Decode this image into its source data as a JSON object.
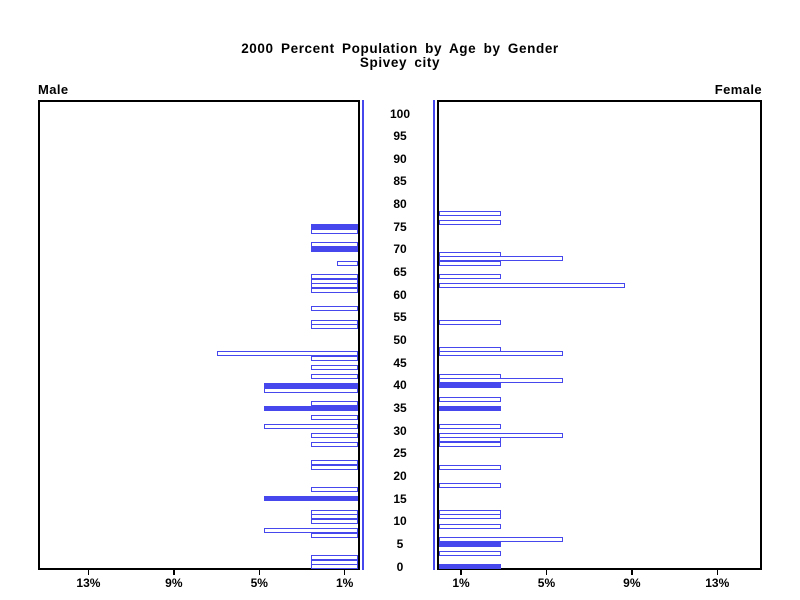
{
  "title": {
    "line1": "2000 Percent Population by Age by Gender",
    "line2": "Spivey city"
  },
  "panel_labels": {
    "left": "Male",
    "right": "Female"
  },
  "colors": {
    "bar_blue": "#4747ee",
    "frame_black": "#000000",
    "background": "#ffffff"
  },
  "chart_data": {
    "type": "bar",
    "subtype": "population-pyramid",
    "title": "2000 Percent Population by Age by Gender",
    "subtitle": "Spivey city",
    "legend": "none",
    "grid": false,
    "age_axis": {
      "min": 0,
      "max": 100,
      "step": 5,
      "tick_labels": [
        "0",
        "5",
        "10",
        "15",
        "20",
        "25",
        "30",
        "35",
        "40",
        "45",
        "50",
        "55",
        "60",
        "65",
        "70",
        "75",
        "80",
        "85",
        "90",
        "95",
        "100"
      ]
    },
    "pct_axis": {
      "tick_values": [
        1,
        5,
        9,
        13
      ],
      "tick_labels": [
        "1%",
        "5%",
        "9%",
        "13%"
      ],
      "max": 15.3,
      "unit": "percent of gender population"
    },
    "series": [
      {
        "name": "Male",
        "side": "left",
        "bars": [
          {
            "age": 75,
            "pct": 2.2,
            "filled": true
          },
          {
            "age": 74,
            "pct": 2.2,
            "filled": false
          },
          {
            "age": 71,
            "pct": 2.2,
            "filled": false
          },
          {
            "age": 70,
            "pct": 2.2,
            "filled": true
          },
          {
            "age": 67,
            "pct": 1.0,
            "filled": false
          },
          {
            "age": 64,
            "pct": 2.2,
            "filled": false
          },
          {
            "age": 63,
            "pct": 2.2,
            "filled": false
          },
          {
            "age": 62,
            "pct": 2.2,
            "filled": false
          },
          {
            "age": 61,
            "pct": 2.2,
            "filled": false
          },
          {
            "age": 57,
            "pct": 2.2,
            "filled": false
          },
          {
            "age": 54,
            "pct": 2.2,
            "filled": false
          },
          {
            "age": 53,
            "pct": 2.2,
            "filled": false
          },
          {
            "age": 47,
            "pct": 6.6,
            "filled": false
          },
          {
            "age": 46,
            "pct": 2.2,
            "filled": false
          },
          {
            "age": 44,
            "pct": 2.2,
            "filled": false
          },
          {
            "age": 42,
            "pct": 2.2,
            "filled": false
          },
          {
            "age": 40,
            "pct": 4.4,
            "filled": true
          },
          {
            "age": 39,
            "pct": 4.4,
            "filled": false
          },
          {
            "age": 36,
            "pct": 2.2,
            "filled": false
          },
          {
            "age": 35,
            "pct": 4.4,
            "filled": true
          },
          {
            "age": 33,
            "pct": 2.2,
            "filled": false
          },
          {
            "age": 31,
            "pct": 4.4,
            "filled": false
          },
          {
            "age": 29,
            "pct": 2.2,
            "filled": false
          },
          {
            "age": 27,
            "pct": 2.2,
            "filled": false
          },
          {
            "age": 23,
            "pct": 2.2,
            "filled": false
          },
          {
            "age": 22,
            "pct": 2.2,
            "filled": false
          },
          {
            "age": 17,
            "pct": 2.2,
            "filled": false
          },
          {
            "age": 15,
            "pct": 4.4,
            "filled": true
          },
          {
            "age": 12,
            "pct": 2.2,
            "filled": false
          },
          {
            "age": 11,
            "pct": 2.2,
            "filled": false
          },
          {
            "age": 10,
            "pct": 2.2,
            "filled": false
          },
          {
            "age": 8,
            "pct": 4.4,
            "filled": false
          },
          {
            "age": 7,
            "pct": 2.2,
            "filled": false
          },
          {
            "age": 2,
            "pct": 2.2,
            "filled": false
          },
          {
            "age": 1,
            "pct": 2.2,
            "filled": false
          },
          {
            "age": 0,
            "pct": 2.2,
            "filled": false
          }
        ]
      },
      {
        "name": "Female",
        "side": "right",
        "bars": [
          {
            "age": 78,
            "pct": 2.9,
            "filled": false
          },
          {
            "age": 76,
            "pct": 2.9,
            "filled": false
          },
          {
            "age": 69,
            "pct": 2.9,
            "filled": false
          },
          {
            "age": 68,
            "pct": 5.8,
            "filled": false
          },
          {
            "age": 67,
            "pct": 2.9,
            "filled": false
          },
          {
            "age": 64,
            "pct": 2.9,
            "filled": false
          },
          {
            "age": 62,
            "pct": 8.7,
            "filled": false
          },
          {
            "age": 54,
            "pct": 2.9,
            "filled": false
          },
          {
            "age": 48,
            "pct": 2.9,
            "filled": false
          },
          {
            "age": 47,
            "pct": 5.8,
            "filled": false
          },
          {
            "age": 42,
            "pct": 2.9,
            "filled": false
          },
          {
            "age": 41,
            "pct": 5.8,
            "filled": false
          },
          {
            "age": 40,
            "pct": 2.9,
            "filled": true
          },
          {
            "age": 37,
            "pct": 2.9,
            "filled": false
          },
          {
            "age": 35,
            "pct": 2.9,
            "filled": true
          },
          {
            "age": 31,
            "pct": 2.9,
            "filled": false
          },
          {
            "age": 29,
            "pct": 5.8,
            "filled": false
          },
          {
            "age": 28,
            "pct": 2.9,
            "filled": false
          },
          {
            "age": 27,
            "pct": 2.9,
            "filled": false
          },
          {
            "age": 22,
            "pct": 2.9,
            "filled": false
          },
          {
            "age": 18,
            "pct": 2.9,
            "filled": false
          },
          {
            "age": 12,
            "pct": 2.9,
            "filled": false
          },
          {
            "age": 11,
            "pct": 2.9,
            "filled": false
          },
          {
            "age": 9,
            "pct": 2.9,
            "filled": false
          },
          {
            "age": 6,
            "pct": 5.8,
            "filled": false
          },
          {
            "age": 5,
            "pct": 2.9,
            "filled": true
          },
          {
            "age": 3,
            "pct": 2.9,
            "filled": false
          },
          {
            "age": 0,
            "pct": 2.9,
            "filled": true
          }
        ]
      }
    ]
  }
}
